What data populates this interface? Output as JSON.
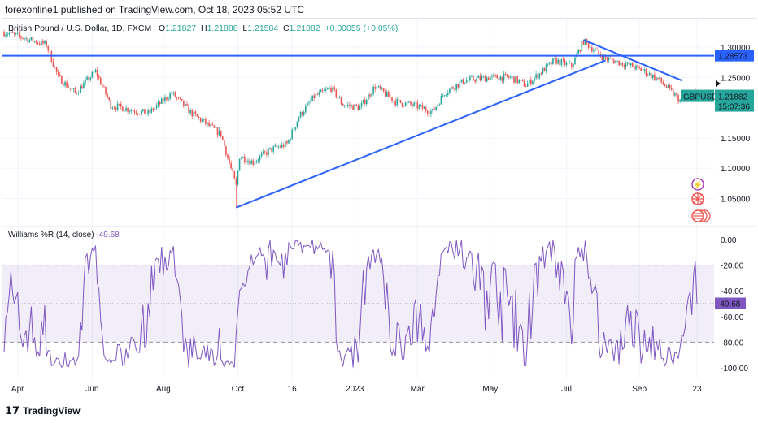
{
  "header": {
    "published": "forexonline1 published on TradingView.com, Oct 18, 2023 05:52 UTC"
  },
  "legend": {
    "symbol": "British Pound / U.S. Dollar, 1D, FXCM",
    "open_label": "O",
    "open": "1.21827",
    "high_label": "H",
    "high": "1.21888",
    "low_label": "L",
    "low": "1.21584",
    "close_label": "C",
    "close": "1.21882",
    "change": "+0.00055 (+0.05%)"
  },
  "price_axis": {
    "ticks": [
      "1.30000",
      "1.25000",
      "1.15000",
      "1.10000",
      "1.05000"
    ],
    "tick_values": [
      1.3,
      1.25,
      1.15,
      1.1,
      1.05
    ],
    "hline_label": "1.28573",
    "hline_value": 1.28573,
    "symbol_tag": "GBPUSD",
    "last_price": "1.21882",
    "last_value": 1.21882,
    "countdown": "15:07:36"
  },
  "indicator": {
    "title": "Williams %R (14, close)",
    "value": "-49.68",
    "ticks": [
      "0.00",
      "-20.00",
      "-40.00",
      "-60.00",
      "-80.00",
      "-100.00"
    ],
    "tick_values": [
      0,
      -20,
      -40,
      -60,
      -80,
      -100
    ]
  },
  "time_axis": {
    "labels": [
      "Apr",
      "Jun",
      "Aug",
      "Oct",
      "16",
      "2023",
      "Mar",
      "May",
      "Jul",
      "Sep",
      "23"
    ],
    "label_days": [
      8,
      52,
      94,
      138,
      170,
      207,
      244,
      287,
      332,
      375,
      409
    ]
  },
  "chart_data": {
    "type": "candlestick",
    "symbol": "GBPUSD",
    "timeframe": "1D",
    "days": 410,
    "price_path": [
      [
        1,
        1.324
      ],
      [
        25,
        1.304
      ],
      [
        32,
        1.25
      ],
      [
        42,
        1.224
      ],
      [
        54,
        1.26
      ],
      [
        63,
        1.204
      ],
      [
        85,
        1.19
      ],
      [
        99,
        1.224
      ],
      [
        111,
        1.19
      ],
      [
        128,
        1.156
      ],
      [
        137,
        1.07
      ],
      [
        139,
        1.12
      ],
      [
        147,
        1.11
      ],
      [
        157,
        1.13
      ],
      [
        167,
        1.14
      ],
      [
        174,
        1.185
      ],
      [
        183,
        1.218
      ],
      [
        193,
        1.232
      ],
      [
        200,
        1.205
      ],
      [
        210,
        1.2
      ],
      [
        219,
        1.235
      ],
      [
        231,
        1.21
      ],
      [
        243,
        1.203
      ],
      [
        253,
        1.193
      ],
      [
        260,
        1.225
      ],
      [
        272,
        1.245
      ],
      [
        287,
        1.25
      ],
      [
        299,
        1.25
      ],
      [
        308,
        1.237
      ],
      [
        325,
        1.278
      ],
      [
        335,
        1.269
      ],
      [
        342,
        1.31
      ],
      [
        354,
        1.282
      ],
      [
        368,
        1.271
      ],
      [
        378,
        1.26
      ],
      [
        387,
        1.245
      ],
      [
        399,
        1.212
      ],
      [
        407,
        1.228
      ],
      [
        409,
        1.2188
      ]
    ],
    "trendlines": [
      {
        "name": "support",
        "from": [
          137,
          1.035
        ],
        "to": [
          355,
          1.278
        ]
      },
      {
        "name": "resistance",
        "from": [
          342,
          1.312
        ],
        "to": [
          400,
          1.245
        ]
      }
    ],
    "ylim": [
      1.015,
      1.335
    ],
    "colors": {
      "up": "#26a69a",
      "down": "#ef5350",
      "line": "#2962ff",
      "wr": "#7e57c2"
    }
  },
  "footer": {
    "brand": "TradingView"
  }
}
